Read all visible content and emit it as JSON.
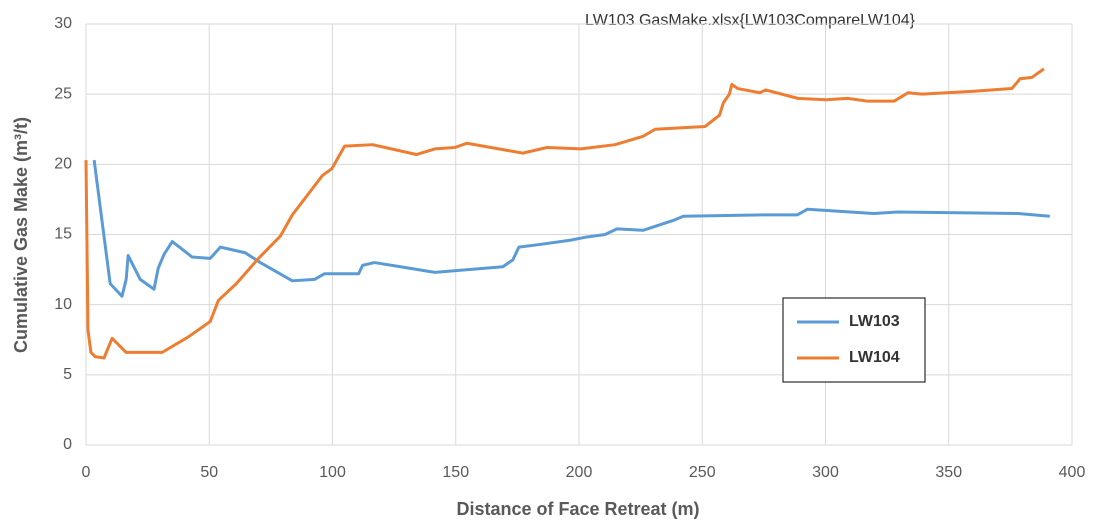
{
  "chart_data": {
    "type": "line",
    "title": "LW103 GasMake.xlsx{LW103CompareLW104}",
    "x_label": "Distance of Face Retreat (m)",
    "y_label": "Cumulative Gas Make (m³/t)",
    "xlim": [
      0,
      400
    ],
    "xticks": [
      0,
      50,
      100,
      150,
      200,
      250,
      300,
      350,
      400
    ],
    "ylim": [
      0,
      30
    ],
    "yticks": [
      0,
      5,
      10,
      15,
      20,
      25,
      30
    ],
    "grid": true,
    "legend": "lower right",
    "series": [
      {
        "name": "LW103",
        "color": "#5b9bd5",
        "x": [
          3.3,
          9.8,
          14.6,
          16.3,
          17.1,
          22,
          27.6,
          29.3,
          31.7,
          35,
          43,
          50.4,
          54.5,
          64.6,
          70.7,
          83.7,
          92.7,
          96.7,
          110.6,
          112.2,
          117,
          127.6,
          141.5,
          169.1,
          173.2,
          175.6,
          184.6,
          196.7,
          202.4,
          210.6,
          215.4,
          226,
          238.2,
          242.3,
          274.8,
          288.6,
          292.7,
          319.5,
          329.3,
          378,
          391
        ],
        "values": [
          20.3,
          11.5,
          10.6,
          11.8,
          13.5,
          11.8,
          11.1,
          12.6,
          13.6,
          14.5,
          13.4,
          13.3,
          14.1,
          13.7,
          13.0,
          11.7,
          11.8,
          12.2,
          12.2,
          12.8,
          13.0,
          12.7,
          12.3,
          12.7,
          13.2,
          14.1,
          14.3,
          14.6,
          14.8,
          15.0,
          15.4,
          15.3,
          16.0,
          16.3,
          16.4,
          16.4,
          16.8,
          16.5,
          16.6,
          16.5,
          16.3
        ]
      },
      {
        "name": "LW104",
        "color": "#ed7d31",
        "x": [
          0,
          0.8,
          2,
          3.7,
          7.3,
          10.6,
          16.3,
          30.9,
          41.5,
          50.4,
          53.7,
          61,
          70,
          78.9,
          83.7,
          95.9,
          99.8,
          104.9,
          116.3,
          134,
          141.5,
          149.6,
          154.5,
          177.2,
          187,
          200.8,
          214.6,
          226,
          230.9,
          251.2,
          257,
          258.6,
          261,
          262,
          264.4,
          273.4,
          275.7,
          288.8,
          300.2,
          309,
          317.2,
          327.8,
          333.5,
          339.1,
          359.4,
          375.6,
          378,
          378.9,
          383.8,
          388.6
        ],
        "values": [
          20.3,
          8.2,
          6.6,
          6.3,
          6.2,
          7.6,
          6.6,
          6.6,
          7.7,
          8.8,
          10.3,
          11.5,
          13.3,
          14.9,
          16.4,
          19.2,
          19.7,
          21.3,
          21.4,
          20.7,
          21.1,
          21.2,
          21.5,
          20.8,
          21.2,
          21.1,
          21.4,
          22.0,
          22.5,
          22.7,
          23.5,
          24.4,
          25.0,
          25.7,
          25.4,
          25.1,
          25.3,
          24.7,
          24.6,
          24.7,
          24.5,
          24.5,
          25.1,
          25.0,
          25.2,
          25.4,
          25.9,
          26.1,
          26.2,
          26.8
        ]
      }
    ]
  }
}
